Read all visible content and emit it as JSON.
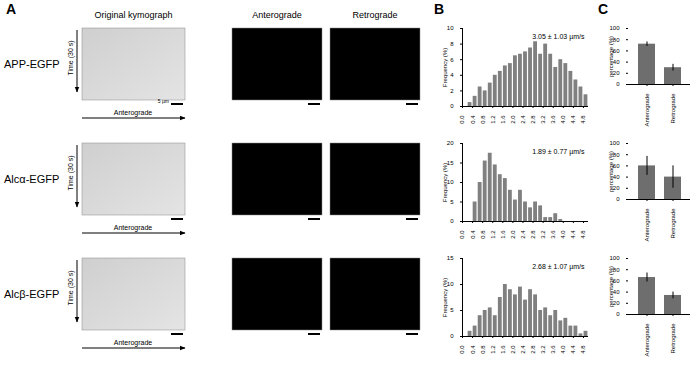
{
  "figure": {
    "panel_labels": [
      "A",
      "B",
      "C"
    ],
    "rows": [
      "APP-EGFP",
      "Alcα-EGFP",
      "Alcβ-EGFP"
    ],
    "kymograph_columns": [
      "Original kymograph",
      "Anterograde",
      "Retrograde"
    ],
    "time_label": "Time (30 s)",
    "direction_label": "Anterograde",
    "scale_bar_label": "5 µm"
  },
  "chart_data": [
    {
      "type": "histogram",
      "annotation": "3.05 ± 1.03 µm/s",
      "ylabel": "Frequency (%)",
      "bins": [
        0,
        0.2,
        0.4,
        0.6,
        0.8,
        1,
        1.2,
        1.4,
        1.6,
        1.8,
        2,
        2.2,
        2.4,
        2.6,
        2.8,
        3,
        3.2,
        3.4,
        3.6,
        3.8,
        4,
        4.2,
        4.4,
        4.6,
        4.8,
        5
      ],
      "values": [
        0,
        0.5,
        1.3,
        2.5,
        2,
        3,
        4,
        4.5,
        5.2,
        5.5,
        6.5,
        6.7,
        7,
        7.5,
        8.3,
        6.7,
        8,
        6.7,
        5,
        6,
        5.5,
        4.5,
        3.4,
        2.5,
        1.5
      ],
      "xlim": [
        0,
        5
      ],
      "xticks": [
        {
          "value": 0,
          "label": "0.0"
        },
        0.4,
        0.8,
        1.2,
        1.6,
        {
          "value": 2,
          "label": "2.0"
        },
        2.4,
        2.8,
        3.2,
        3.6,
        {
          "value": 4,
          "label": "4.0"
        },
        4.4,
        4.8
      ],
      "ylim": [
        0,
        10
      ],
      "yticks": [
        0,
        2,
        4,
        6,
        8,
        10
      ],
      "color": "#808080"
    },
    {
      "type": "histogram",
      "annotation": "1.89 ± 0.77 µm/s",
      "ylabel": "Frequency (%)",
      "bins": [
        0,
        0.2,
        0.4,
        0.6,
        0.8,
        1,
        1.2,
        1.4,
        1.6,
        1.8,
        2,
        2.2,
        2.4,
        2.6,
        2.8,
        3,
        3.2,
        3.4,
        3.6,
        3.8,
        4,
        4.2,
        4.4,
        4.6,
        4.8,
        5
      ],
      "values": [
        0,
        0,
        5,
        10,
        15.5,
        17.5,
        14.5,
        12,
        11,
        8,
        5.5,
        8,
        5,
        3.5,
        5,
        4,
        1,
        1,
        2,
        0.5,
        0,
        0,
        0,
        0,
        0
      ],
      "xlim": [
        0,
        5
      ],
      "xticks": [
        {
          "value": 0,
          "label": "0.0"
        },
        0.4,
        0.8,
        1.2,
        1.6,
        {
          "value": 2,
          "label": "2.0"
        },
        2.4,
        2.8,
        3.2,
        3.6,
        {
          "value": 4,
          "label": "4.0"
        },
        4.4,
        4.8
      ],
      "ylim": [
        0,
        20
      ],
      "yticks": [
        0,
        5,
        10,
        15,
        20
      ],
      "color": "#808080"
    },
    {
      "type": "histogram",
      "annotation": "2.68 ± 1.07 µm/s",
      "ylabel": "Frequency (%)",
      "bins": [
        0,
        0.2,
        0.4,
        0.6,
        0.8,
        1,
        1.2,
        1.4,
        1.6,
        1.8,
        2,
        2.2,
        2.4,
        2.6,
        2.8,
        3,
        3.2,
        3.4,
        3.6,
        3.8,
        4,
        4.2,
        4.4,
        4.6,
        4.8,
        5
      ],
      "values": [
        0,
        1,
        2,
        4,
        5,
        5.5,
        4,
        7.5,
        10,
        9,
        8,
        9.5,
        7,
        9,
        8,
        5,
        5.5,
        4,
        5,
        3,
        3.5,
        2,
        2,
        0.5,
        1
      ],
      "xlim": [
        0,
        5
      ],
      "xticks": [
        {
          "value": 0,
          "label": "0.0"
        },
        0.4,
        0.8,
        1.2,
        1.6,
        {
          "value": 2,
          "label": "2.0"
        },
        2.4,
        2.8,
        3.2,
        3.6,
        {
          "value": 4,
          "label": "4.0"
        },
        4.4,
        4.8
      ],
      "ylim": [
        0,
        15
      ],
      "yticks": [
        0,
        5,
        10,
        15
      ],
      "color": "#808080"
    },
    {
      "type": "bar",
      "ylabel": "percentage (%)",
      "categories": [
        "Anterograde",
        "Retrograde"
      ],
      "values": [
        72,
        30
      ],
      "errors": [
        4,
        6
      ],
      "ylim": [
        0,
        100
      ],
      "yticks": [
        0,
        20,
        40,
        60,
        80,
        100
      ],
      "color": "#6e6e6e"
    },
    {
      "type": "bar",
      "ylabel": "percentage (%)",
      "categories": [
        "Anterograde",
        "Retrograde"
      ],
      "values": [
        60,
        40
      ],
      "errors": [
        17,
        20
      ],
      "ylim": [
        0,
        100
      ],
      "yticks": [
        0,
        20,
        40,
        60,
        80,
        100
      ],
      "color": "#6e6e6e"
    },
    {
      "type": "bar",
      "ylabel": "percentage (%)",
      "categories": [
        "Anterograde",
        "Retrograde"
      ],
      "values": [
        66,
        34
      ],
      "errors": [
        8,
        6
      ],
      "ylim": [
        0,
        100
      ],
      "yticks": [
        0,
        20,
        40,
        60,
        80,
        100
      ],
      "color": "#6e6e6e"
    }
  ]
}
